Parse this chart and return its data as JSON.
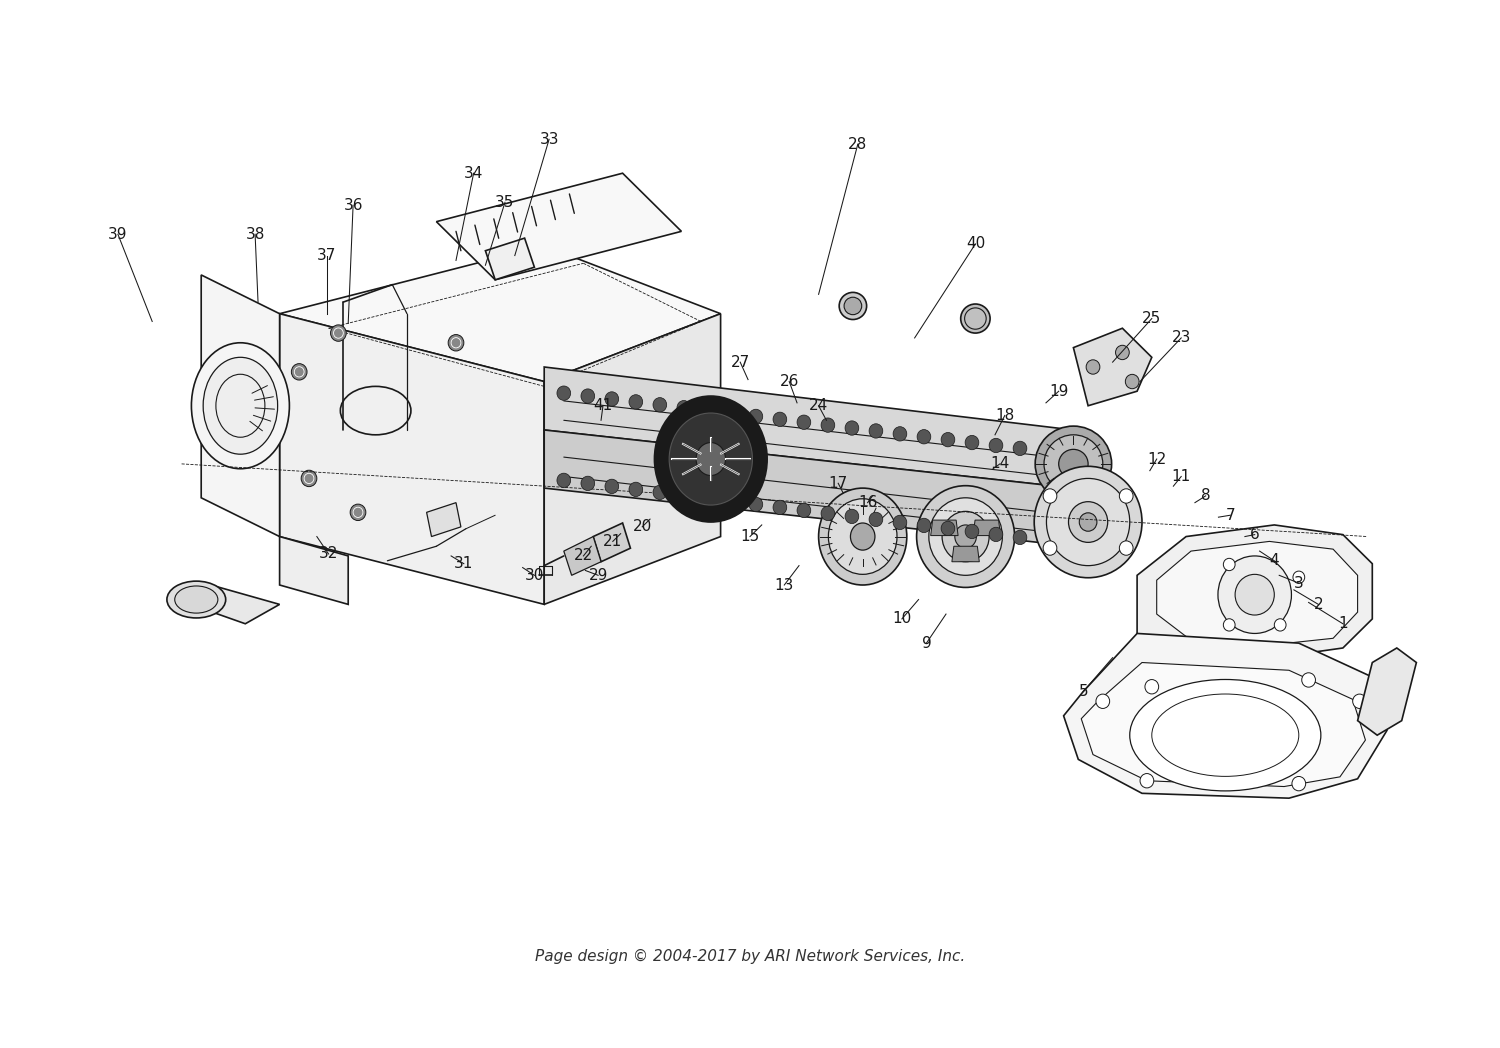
{
  "footer": "Page design © 2004-2017 by ARI Network Services, Inc.",
  "bg": "#ffffff",
  "fw": 15.0,
  "fh": 10.48,
  "dpi": 100,
  "watermark": "ARI",
  "wm_color": "#cccccc",
  "wm_alpha": 0.18,
  "label_fs": 11,
  "footer_fs": 11,
  "lw_main": 1.2,
  "lw_thin": 0.7,
  "black": "#1a1a1a",
  "labels": [
    [
      "1",
      1355,
      580
    ],
    [
      "2",
      1330,
      560
    ],
    [
      "3",
      1310,
      538
    ],
    [
      "4",
      1285,
      515
    ],
    [
      "5",
      1090,
      650
    ],
    [
      "6",
      1265,
      488
    ],
    [
      "7",
      1240,
      468
    ],
    [
      "8",
      1215,
      448
    ],
    [
      "9",
      930,
      600
    ],
    [
      "10",
      905,
      575
    ],
    [
      "11",
      1190,
      428
    ],
    [
      "12",
      1165,
      410
    ],
    [
      "13",
      785,
      540
    ],
    [
      "14",
      1005,
      415
    ],
    [
      "15",
      750,
      490
    ],
    [
      "16",
      870,
      455
    ],
    [
      "17",
      840,
      435
    ],
    [
      "18",
      1010,
      365
    ],
    [
      "19",
      1065,
      340
    ],
    [
      "20",
      640,
      480
    ],
    [
      "21",
      610,
      495
    ],
    [
      "22",
      580,
      510
    ],
    [
      "23",
      1190,
      285
    ],
    [
      "24",
      820,
      355
    ],
    [
      "25",
      1160,
      265
    ],
    [
      "26",
      790,
      330
    ],
    [
      "27",
      740,
      310
    ],
    [
      "28",
      860,
      85
    ],
    [
      "29",
      595,
      530
    ],
    [
      "30",
      530,
      530
    ],
    [
      "31",
      458,
      518
    ],
    [
      "32",
      320,
      508
    ],
    [
      "33",
      545,
      80
    ],
    [
      "34",
      468,
      115
    ],
    [
      "35",
      500,
      145
    ],
    [
      "36",
      345,
      148
    ],
    [
      "37",
      318,
      200
    ],
    [
      "38",
      245,
      178
    ],
    [
      "39",
      105,
      178
    ],
    [
      "40",
      980,
      188
    ],
    [
      "41",
      600,
      355
    ]
  ],
  "leader_lines": [
    [
      1355,
      580,
      1320,
      558
    ],
    [
      1330,
      560,
      1305,
      545
    ],
    [
      1310,
      538,
      1290,
      530
    ],
    [
      1285,
      515,
      1270,
      505
    ],
    [
      1090,
      650,
      1120,
      615
    ],
    [
      1265,
      488,
      1255,
      490
    ],
    [
      1240,
      468,
      1228,
      470
    ],
    [
      1215,
      448,
      1204,
      455
    ],
    [
      930,
      600,
      950,
      570
    ],
    [
      905,
      575,
      922,
      555
    ],
    [
      1190,
      428,
      1182,
      438
    ],
    [
      1165,
      410,
      1158,
      422
    ],
    [
      785,
      540,
      800,
      520
    ],
    [
      1005,
      415,
      998,
      420
    ],
    [
      750,
      490,
      762,
      478
    ],
    [
      870,
      455,
      875,
      448
    ],
    [
      840,
      435,
      845,
      445
    ],
    [
      1010,
      365,
      1000,
      385
    ],
    [
      1065,
      340,
      1052,
      352
    ],
    [
      640,
      480,
      648,
      472
    ],
    [
      610,
      495,
      618,
      487
    ],
    [
      580,
      510,
      588,
      500
    ],
    [
      1190,
      285,
      1148,
      330
    ],
    [
      820,
      355,
      828,
      370
    ],
    [
      1160,
      265,
      1120,
      310
    ],
    [
      790,
      330,
      798,
      352
    ],
    [
      740,
      310,
      748,
      328
    ],
    [
      860,
      85,
      820,
      240
    ],
    [
      595,
      530,
      582,
      525
    ],
    [
      530,
      530,
      518,
      522
    ],
    [
      458,
      518,
      445,
      510
    ],
    [
      320,
      508,
      308,
      490
    ],
    [
      545,
      80,
      510,
      200
    ],
    [
      468,
      115,
      450,
      205
    ],
    [
      500,
      145,
      480,
      210
    ],
    [
      345,
      148,
      340,
      270
    ],
    [
      318,
      200,
      318,
      260
    ],
    [
      245,
      178,
      248,
      248
    ],
    [
      105,
      178,
      140,
      268
    ],
    [
      980,
      188,
      918,
      285
    ],
    [
      600,
      355,
      598,
      370
    ]
  ]
}
